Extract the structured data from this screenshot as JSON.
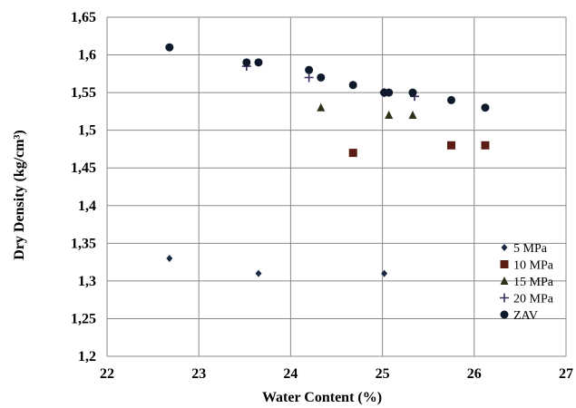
{
  "chart_data": {
    "type": "scatter",
    "title": "",
    "xlabel": "Water Content (%)",
    "ylabel": "Dry Density (kg/cm³)",
    "xlim": [
      22,
      27
    ],
    "ylim": [
      1.2,
      1.65
    ],
    "xticks": [
      22,
      23,
      24,
      25,
      26,
      27
    ],
    "xtick_labels": [
      "22",
      "23",
      "24",
      "25",
      "26",
      "27"
    ],
    "yticks": [
      1.2,
      1.25,
      1.3,
      1.35,
      1.4,
      1.45,
      1.5,
      1.55,
      1.6,
      1.65
    ],
    "ytick_labels": [
      "1,2",
      "1,25",
      "1,3",
      "1,35",
      "1,4",
      "1,45",
      "1,5",
      "1,55",
      "1,6",
      "1,65"
    ],
    "grid": "horizontal and vertical",
    "legend_position": "right",
    "series": [
      {
        "name": "5 MPa",
        "marker": "diamond",
        "color": "#1a2a40",
        "x": [
          22.68,
          23.65,
          25.02
        ],
        "y": [
          1.33,
          1.31,
          1.31
        ]
      },
      {
        "name": "10 MPa",
        "marker": "square",
        "color": "#5a1c14",
        "x": [
          24.68,
          25.75,
          26.12
        ],
        "y": [
          1.47,
          1.48,
          1.48
        ]
      },
      {
        "name": "15 MPa",
        "marker": "triangle",
        "color": "#2e3018",
        "x": [
          24.33,
          25.07,
          25.33
        ],
        "y": [
          1.53,
          1.52,
          1.52
        ]
      },
      {
        "name": "20 MPa",
        "marker": "cross",
        "color": "#3a3060",
        "x": [
          23.52,
          24.2,
          25.02,
          25.35
        ],
        "y": [
          1.585,
          1.57,
          1.55,
          1.545
        ]
      },
      {
        "name": "ZAV",
        "marker": "circle",
        "color": "#0e1a2c",
        "x": [
          22.68,
          23.52,
          23.65,
          24.2,
          24.33,
          24.68,
          25.02,
          25.07,
          25.33,
          25.75,
          26.12
        ],
        "y": [
          1.61,
          1.59,
          1.59,
          1.58,
          1.57,
          1.56,
          1.55,
          1.55,
          1.55,
          1.54,
          1.53
        ]
      }
    ]
  }
}
